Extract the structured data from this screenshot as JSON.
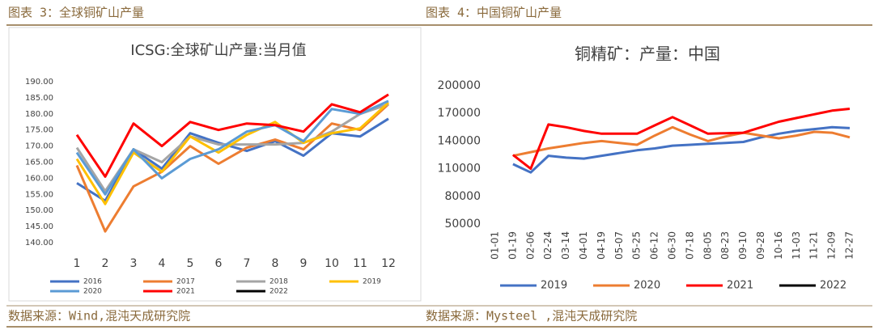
{
  "chart_data": [
    {
      "type": "line",
      "caption": "图表 3：全球铜矿山产量",
      "source": "数据来源：Wind,混沌天成研究院",
      "title": "ICSG:全球矿山产量:当月值",
      "categories": [
        "1",
        "2",
        "3",
        "4",
        "5",
        "6",
        "7",
        "8",
        "9",
        "10",
        "11",
        "12"
      ],
      "ylim": [
        140,
        190
      ],
      "yticks": [
        {
          "value": 140,
          "label": "140.00"
        },
        {
          "value": 145,
          "label": "145.00"
        },
        {
          "value": 150,
          "label": "150.00"
        },
        {
          "value": 155,
          "label": "155.00"
        },
        {
          "value": 160,
          "label": "160.00"
        },
        {
          "value": 165,
          "label": "165.00"
        },
        {
          "value": 170,
          "label": "170.00"
        },
        {
          "value": 175,
          "label": "175.00"
        },
        {
          "value": 180,
          "label": "180.00"
        },
        {
          "value": 185,
          "label": "185.00"
        },
        {
          "value": 190,
          "label": "190.00"
        }
      ],
      "grid": false,
      "legend": "bottom",
      "series": [
        {
          "name": "2016",
          "color": "#4472c4",
          "values": [
            158.5,
            153,
            169,
            163,
            174,
            171,
            168.5,
            171.5,
            167,
            174,
            173,
            178.5
          ]
        },
        {
          "name": "2017",
          "color": "#ed7d31",
          "values": [
            164,
            143.5,
            157.5,
            162,
            170,
            164.5,
            169.5,
            172,
            169,
            177,
            175,
            183
          ]
        },
        {
          "name": "2018",
          "color": "#a5a5a5",
          "values": [
            169.5,
            156,
            169,
            165,
            173,
            170.5,
            170.5,
            170.5,
            171,
            174.5,
            180,
            183
          ]
        },
        {
          "name": "2019",
          "color": "#ffc000",
          "values": [
            166,
            152,
            168,
            162,
            173,
            168,
            173.5,
            177.5,
            171,
            174,
            175.5,
            183.5
          ]
        },
        {
          "name": "2020",
          "color": "#5b9bd5",
          "values": [
            168,
            155,
            169,
            160,
            166,
            169,
            174.5,
            176.5,
            171.5,
            181.5,
            180,
            184
          ]
        },
        {
          "name": "2021",
          "color": "#ff0000",
          "values": [
            173.5,
            160.5,
            177,
            170,
            177.5,
            175,
            177,
            176.5,
            174.5,
            183,
            180.5,
            186
          ]
        },
        {
          "name": "2022",
          "color": "#000000",
          "values": [
            null,
            null,
            null,
            null,
            null,
            null,
            null,
            null,
            null,
            null,
            null,
            null
          ]
        }
      ]
    },
    {
      "type": "line",
      "caption": "图表 4：中国铜矿山产量",
      "source": "数据来源：Mysteel ,混沌天成研究院",
      "title": "铜精矿：产量：中国",
      "categories": [
        "01-01",
        "01-19",
        "02-06",
        "02-24",
        "03-14",
        "04-01",
        "04-19",
        "05-07",
        "05-25",
        "06-12",
        "06-30",
        "07-18",
        "08-05",
        "08-23",
        "09-10",
        "09-28",
        "10-16",
        "11-03",
        "11-21",
        "12-09",
        "12-27"
      ],
      "ylim": [
        50000,
        200000
      ],
      "yticks": [
        50000,
        80000,
        110000,
        140000,
        170000,
        200000
      ],
      "grid": false,
      "legend": "bottom",
      "series": [
        {
          "name": "2019",
          "color": "#4472c4",
          "values": [
            null,
            115000,
            106000,
            124000,
            122000,
            121000,
            124000,
            127000,
            130000,
            132000,
            135000,
            136000,
            137000,
            138000,
            139000,
            144000,
            148000,
            151000,
            153000,
            155000,
            154000
          ]
        },
        {
          "name": "2020",
          "color": "#ed7d31",
          "values": [
            null,
            124000,
            128000,
            132000,
            135000,
            138000,
            140000,
            138000,
            136000,
            146000,
            155000,
            147000,
            140000,
            145000,
            149000,
            146000,
            143000,
            146000,
            150000,
            149000,
            144000
          ]
        },
        {
          "name": "2021",
          "color": "#ff0000",
          "values": [
            null,
            125000,
            110000,
            158000,
            155000,
            151000,
            148000,
            148000,
            148000,
            157000,
            166000,
            157000,
            148000,
            148500,
            149000,
            155000,
            161000,
            165000,
            169000,
            173000,
            175000
          ]
        },
        {
          "name": "2022",
          "color": "#000000",
          "values": [
            null,
            null,
            null,
            null,
            null,
            null,
            null,
            null,
            null,
            null,
            null,
            null,
            null,
            null,
            null,
            null,
            null,
            null,
            null,
            null,
            null
          ]
        }
      ]
    }
  ]
}
